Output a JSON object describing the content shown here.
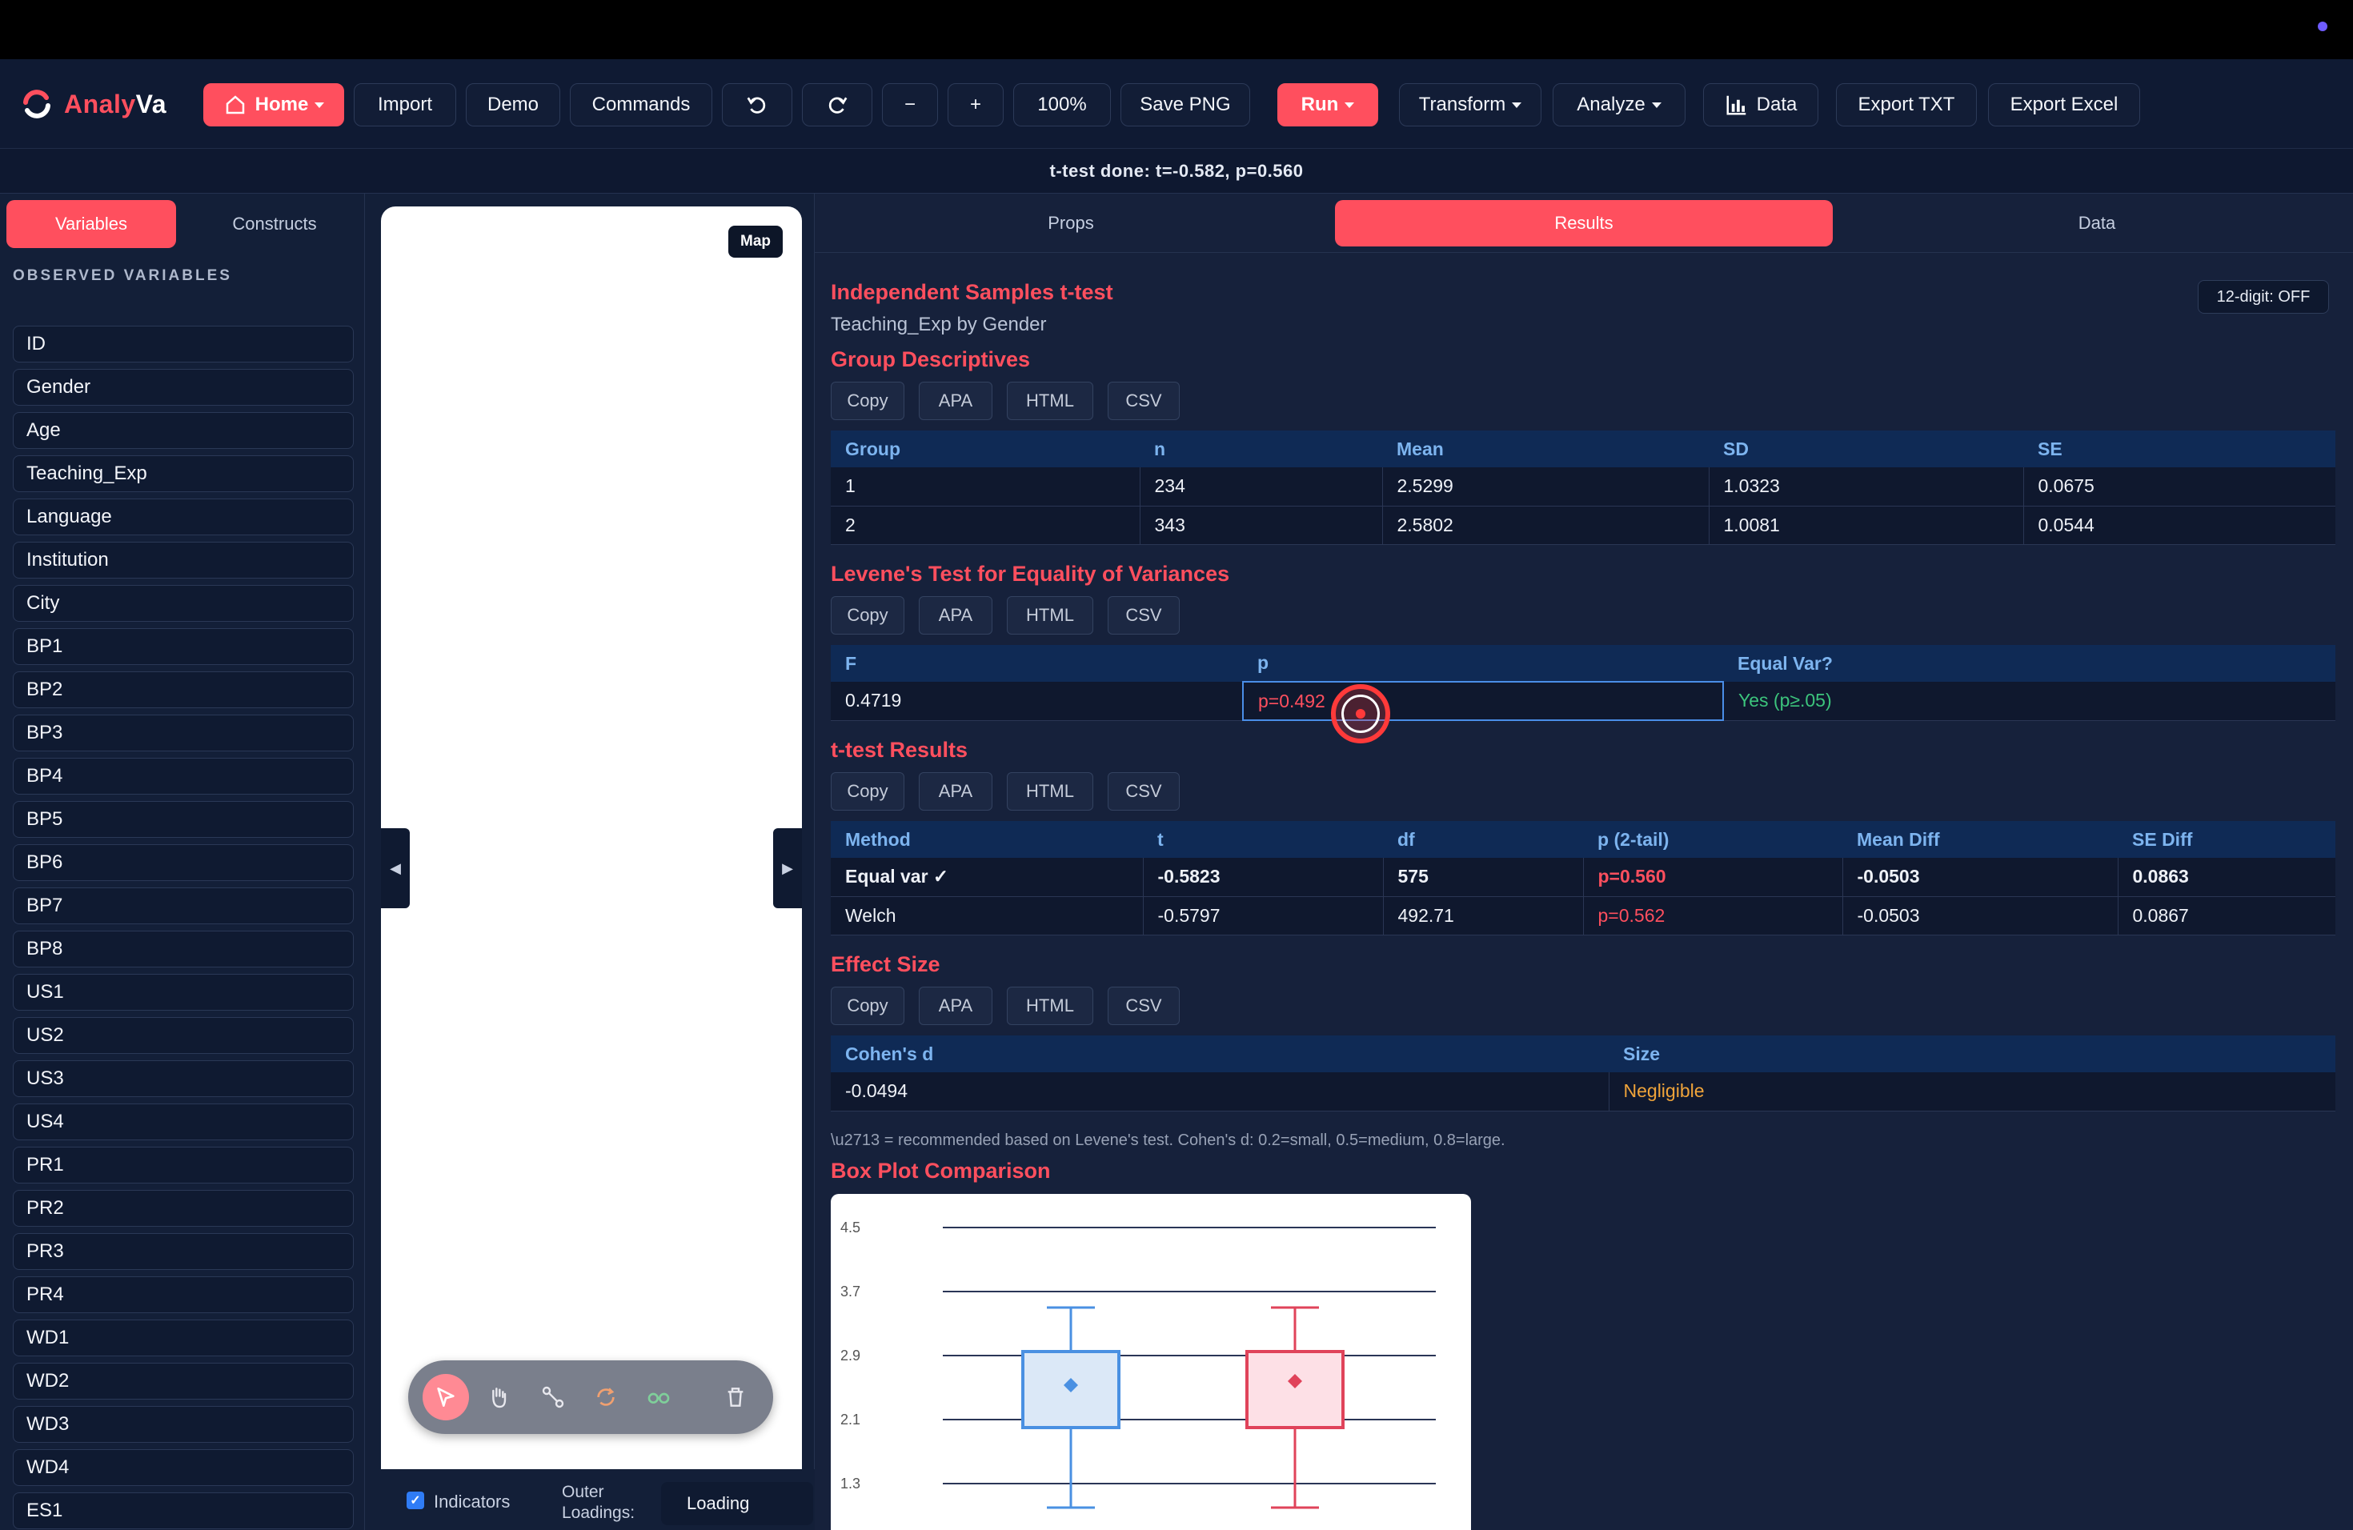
{
  "app": {
    "logo_text": "AnalyVa"
  },
  "toolbar": {
    "home": "Home",
    "import": "Import",
    "demo": "Demo",
    "commands": "Commands",
    "minus": "−",
    "plus": "+",
    "zoom": "100%",
    "save_png": "Save PNG",
    "run": "Run",
    "transform": "Transform",
    "analyze": "Analyze",
    "data": "Data",
    "export_txt": "Export TXT",
    "export_excel": "Export Excel"
  },
  "status": "t-test done: t=-0.582, p=0.560",
  "sidebar": {
    "tabs": [
      "Variables",
      "Constructs"
    ],
    "section_title": "OBSERVED VARIABLES",
    "variables": [
      "ID",
      "Gender",
      "Age",
      "Teaching_Exp",
      "Language",
      "Institution",
      "City",
      "BP1",
      "BP2",
      "BP3",
      "BP4",
      "BP5",
      "BP6",
      "BP7",
      "BP8",
      "US1",
      "US2",
      "US3",
      "US4",
      "PR1",
      "PR2",
      "PR3",
      "PR4",
      "WD1",
      "WD2",
      "WD3",
      "WD4",
      "ES1"
    ]
  },
  "canvas": {
    "map_label": "Map",
    "indicators_label": "Indicators",
    "outer_loadings_label": "Outer Loadings:",
    "outer_loadings_value": "Loading",
    "tools": [
      "pointer-icon",
      "hand-icon",
      "connect-icon",
      "rotate-icon",
      "glasses-icon",
      "trash-icon"
    ]
  },
  "results": {
    "tabs": [
      "Props",
      "Results",
      "Data"
    ],
    "digit_toggle": "12-digit: OFF",
    "title": "Independent Samples t-test",
    "subtitle": "Teaching_Exp by Gender",
    "export_buttons": [
      "Copy",
      "APA",
      "HTML",
      "CSV"
    ],
    "group_desc": {
      "title": "Group Descriptives",
      "headers": [
        "Group",
        "n",
        "Mean",
        "SD",
        "SE"
      ],
      "rows": [
        [
          "1",
          "234",
          "2.5299",
          "1.0323",
          "0.0675"
        ],
        [
          "2",
          "343",
          "2.5802",
          "1.0081",
          "0.0544"
        ]
      ]
    },
    "levene": {
      "title": "Levene's Test for Equality of Variances",
      "headers": [
        "F",
        "p",
        "Equal Var?"
      ],
      "row": [
        "0.4719",
        "p=0.492",
        "Yes (p≥.05)"
      ]
    },
    "ttest": {
      "title": "t-test Results",
      "headers": [
        "Method",
        "t",
        "df",
        "p (2-tail)",
        "Mean Diff",
        "SE Diff"
      ],
      "rows": [
        [
          "Equal var ✓",
          "-0.5823",
          "575",
          "p=0.560",
          "-0.0503",
          "0.0863"
        ],
        [
          "Welch",
          "-0.5797",
          "492.71",
          "p=0.562",
          "-0.0503",
          "0.0867"
        ]
      ]
    },
    "effect": {
      "title": "Effect Size",
      "headers": [
        "Cohen's d",
        "Size"
      ],
      "row": [
        "-0.0494",
        "Negligible"
      ]
    },
    "note": "\\u2713 = recommended based on Levene's test. Cohen's d: 0.2=small, 0.5=medium, 0.8=large.",
    "boxplot_title": "Box Plot Comparison"
  },
  "chart_data": {
    "type": "box",
    "y_ticks": [
      "4.5",
      "3.7",
      "2.9",
      "2.1",
      "1.3"
    ],
    "ylim": [
      1.3,
      4.5
    ],
    "series": [
      {
        "color": "#4a90e2",
        "whisker_high": 3.5,
        "q3": 2.95,
        "mean": 2.53,
        "q1": 2.0,
        "whisker_low": 1.0
      },
      {
        "color": "#e0435a",
        "whisker_high": 3.5,
        "q3": 2.95,
        "mean": 2.58,
        "q1": 2.0,
        "whisker_low": 1.0
      }
    ]
  },
  "colors": {
    "accent": "#ff4f5e",
    "header_blue": "#7db4ef",
    "green": "#3cc47c",
    "orange": "#f0a43a"
  }
}
